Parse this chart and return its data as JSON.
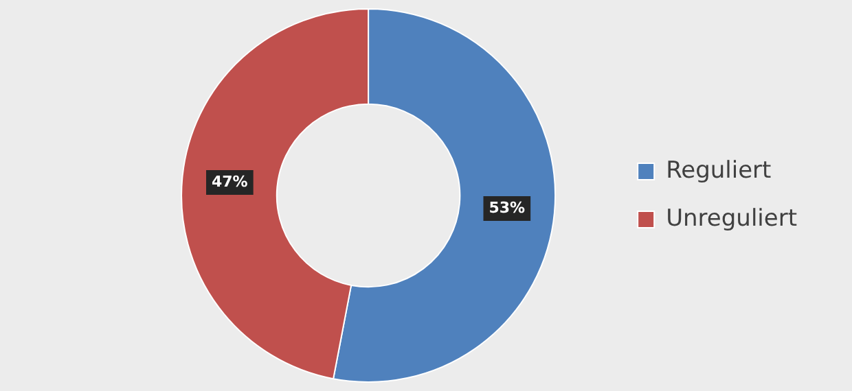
{
  "chart_data": {
    "type": "donut",
    "categories": [
      "Reguliert",
      "Unreguliert"
    ],
    "values": [
      53,
      47
    ],
    "colors": [
      "#4f81bd",
      "#c0504d"
    ],
    "value_labels": [
      "53%",
      "47%"
    ],
    "legend": "right"
  }
}
